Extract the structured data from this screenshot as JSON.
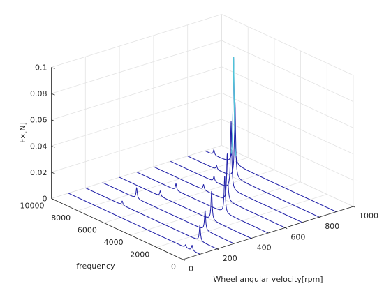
{
  "chart_data": {
    "type": "waterfall",
    "x_axis": {
      "label": "Wheel angular velocity[rpm]",
      "range": [
        0,
        1000
      ],
      "ticks": [
        0,
        200,
        400,
        600,
        800,
        1000
      ],
      "tick_labels": [
        "0",
        "200",
        "400",
        "600",
        "800",
        "1000"
      ]
    },
    "y_axis": {
      "label": "frequency",
      "range": [
        0,
        10000
      ],
      "ticks": [
        0,
        2000,
        4000,
        6000,
        8000,
        10000
      ],
      "tick_labels": [
        "0",
        "2000",
        "4000",
        "6000",
        "8000",
        "10000"
      ]
    },
    "z_axis": {
      "label": "Fx[N]",
      "range": [
        0,
        0.1
      ],
      "ticks": [
        0,
        0.02,
        0.04,
        0.06,
        0.08,
        0.1
      ],
      "tick_labels": [
        "0",
        "0.02",
        "0.04",
        "0.06",
        "0.08",
        "0.1"
      ]
    },
    "grid": true,
    "line_color": "#1f1fa8",
    "highlight_color": "#4fc3d8",
    "series": [
      {
        "wheel_speed_rpm": 100,
        "peaks": [
          {
            "frequency": 600,
            "amplitude": 0.004
          },
          {
            "frequency": 1100,
            "amplitude": 0.002
          }
        ]
      },
      {
        "wheel_speed_rpm": 200,
        "peaks": [
          {
            "frequency": 1300,
            "amplitude": 0.012
          },
          {
            "frequency": 7200,
            "amplitude": 0.003
          }
        ]
      },
      {
        "wheel_speed_rpm": 300,
        "peaks": [
          {
            "frequency": 2200,
            "amplitude": 0.015
          },
          {
            "frequency": 7400,
            "amplitude": 0.008
          }
        ]
      },
      {
        "wheel_speed_rpm": 400,
        "peaks": [
          {
            "frequency": 3000,
            "amplitude": 0.022
          },
          {
            "frequency": 6900,
            "amplitude": 0.004
          }
        ]
      },
      {
        "wheel_speed_rpm": 500,
        "peaks": [
          {
            "frequency": 3300,
            "amplitude": 0.028
          },
          {
            "frequency": 7000,
            "amplitude": 0.005
          }
        ]
      },
      {
        "wheel_speed_rpm": 600,
        "peaks": [
          {
            "frequency": 4400,
            "amplitude": 0.036
          },
          {
            "frequency": 6200,
            "amplitude": 0.004
          }
        ]
      },
      {
        "wheel_speed_rpm": 700,
        "peaks": [
          {
            "frequency": 5400,
            "amplitude": 0.052
          },
          {
            "frequency": 6700,
            "amplitude": 0.004
          }
        ]
      },
      {
        "wheel_speed_rpm": 800,
        "peaks": [
          {
            "frequency": 6400,
            "amplitude": 0.058
          },
          {
            "frequency": 7800,
            "amplitude": 0.003
          }
        ]
      },
      {
        "wheel_speed_rpm": 900,
        "peaks": [
          {
            "frequency": 7800,
            "amplitude": 0.082
          },
          {
            "frequency": 9300,
            "amplitude": 0.004
          }
        ]
      }
    ]
  }
}
